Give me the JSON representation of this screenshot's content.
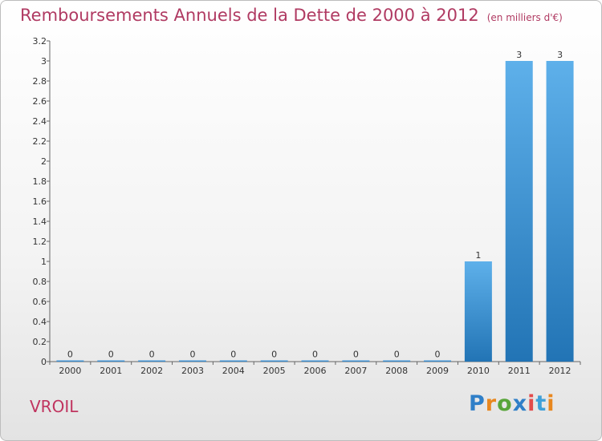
{
  "chart_data": {
    "type": "bar",
    "title": "Remboursements Annuels de la Dette de 2000 à 2012",
    "unit_note": "(en milliers d'€)",
    "categories": [
      "2000",
      "2001",
      "2002",
      "2003",
      "2004",
      "2005",
      "2006",
      "2007",
      "2008",
      "2009",
      "2010",
      "2011",
      "2012"
    ],
    "values": [
      0,
      0,
      0,
      0,
      0,
      0,
      0,
      0,
      0,
      0,
      1,
      3,
      3
    ],
    "value_labels": [
      "0",
      "0",
      "0",
      "0",
      "0",
      "0",
      "0",
      "0",
      "0",
      "0",
      "1",
      "3",
      "3"
    ],
    "ylim": [
      0,
      3.2
    ],
    "y_ticks": [
      {
        "v": 0,
        "label": "0"
      },
      {
        "v": 0.2,
        "label": "0.2"
      },
      {
        "v": 0.4,
        "label": "0.4"
      },
      {
        "v": 0.6,
        "label": "0.6"
      },
      {
        "v": 0.8,
        "label": "0.8"
      },
      {
        "v": 1.0,
        "label": "1"
      },
      {
        "v": 1.2,
        "label": "1.2"
      },
      {
        "v": 1.4,
        "label": "1.4"
      },
      {
        "v": 1.6,
        "label": "1.6"
      },
      {
        "v": 1.8,
        "label": "1.8"
      },
      {
        "v": 2.0,
        "label": "2"
      },
      {
        "v": 2.2,
        "label": "2.2"
      },
      {
        "v": 2.4,
        "label": "2.4"
      },
      {
        "v": 2.6,
        "label": "2.6"
      },
      {
        "v": 2.8,
        "label": "2.8"
      },
      {
        "v": 3.0,
        "label": "3"
      },
      {
        "v": 3.2,
        "label": "3.2"
      }
    ],
    "xlabel": "",
    "ylabel": "",
    "bar_color": "#3d8fd1",
    "grid": false
  },
  "commune": "VROIL",
  "logo": {
    "letters": [
      "P",
      "r",
      "o",
      "x",
      "i",
      "t",
      "i"
    ],
    "colors": [
      "#2f7fc8",
      "#e8871e",
      "#58a53a",
      "#2f7fc8",
      "#e34b4b",
      "#3fa0d8",
      "#e8871e"
    ]
  },
  "colors": {
    "title": "#b03a62",
    "commune": "#c0345f"
  }
}
